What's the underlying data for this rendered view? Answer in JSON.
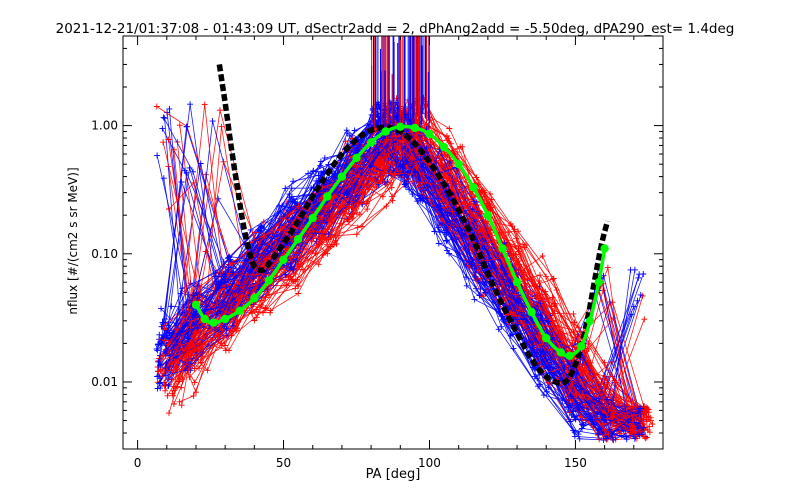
{
  "colors": {
    "background": "#ffffff",
    "axis": "#000000",
    "series_red": "#ff0000",
    "series_blue": "#0000ff",
    "fit_black": "#000000",
    "fit_green": "#00ff00"
  },
  "chart_data": {
    "type": "line",
    "title": "2021-12-21/01:37:08 - 01:43:09 UT, dSectr2add = 2, dPhAng2add = -5.50deg, dPA290_est=   1.4deg",
    "xlabel": "PA [deg]",
    "ylabel": "nflux [#/(cm2 s sr MeV)]",
    "xlim": [
      -5,
      180
    ],
    "ylim": [
      0.003,
      5.0
    ],
    "yscale": "log",
    "grid": false,
    "legend": "none",
    "xticks": [
      0,
      50,
      100,
      150
    ],
    "xtick_labels": [
      "0",
      "50",
      "100",
      "150"
    ],
    "yticks": [
      0.01,
      0.1,
      1.0
    ],
    "ytick_labels": [
      "0.01",
      "0.10",
      "1.00"
    ],
    "series": [
      {
        "role": "black dashed fit",
        "color": "#000000",
        "x": [
          28,
          30,
          32,
          34,
          36,
          38,
          40,
          43,
          46,
          50,
          55,
          60,
          65,
          70,
          75,
          80,
          85,
          90,
          95,
          100,
          105,
          110,
          115,
          120,
          125,
          130,
          135,
          140,
          145,
          148,
          151,
          154,
          157,
          159,
          161
        ],
        "y": [
          3.0,
          1.5,
          0.7,
          0.35,
          0.18,
          0.11,
          0.08,
          0.075,
          0.09,
          0.12,
          0.18,
          0.28,
          0.42,
          0.6,
          0.78,
          0.92,
          0.97,
          0.9,
          0.72,
          0.52,
          0.35,
          0.22,
          0.13,
          0.07,
          0.04,
          0.024,
          0.015,
          0.011,
          0.0098,
          0.011,
          0.016,
          0.03,
          0.07,
          0.12,
          0.18
        ]
      },
      {
        "role": "green fit",
        "color": "#00ff00",
        "x": [
          20,
          23,
          26,
          30,
          35,
          40,
          45,
          50,
          55,
          60,
          65,
          70,
          75,
          80,
          85,
          90,
          95,
          100,
          105,
          110,
          115,
          120,
          125,
          130,
          135,
          140,
          145,
          148,
          152,
          155,
          158,
          160
        ],
        "y": [
          0.04,
          0.031,
          0.029,
          0.031,
          0.036,
          0.045,
          0.062,
          0.09,
          0.13,
          0.19,
          0.28,
          0.4,
          0.56,
          0.74,
          0.9,
          0.98,
          0.96,
          0.86,
          0.68,
          0.5,
          0.33,
          0.2,
          0.11,
          0.06,
          0.035,
          0.022,
          0.017,
          0.016,
          0.019,
          0.03,
          0.06,
          0.11
        ]
      }
    ]
  }
}
